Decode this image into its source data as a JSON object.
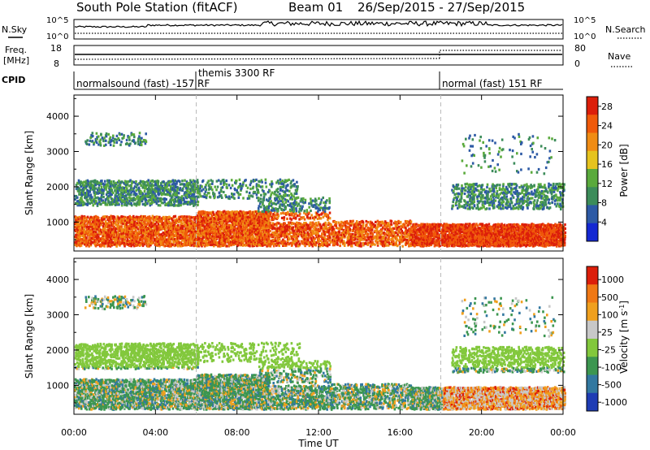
{
  "header": {
    "station": "South Pole Station (fitACF)",
    "beam": "Beam 01",
    "daterange": "26/Sep/2015 - 27/Sep/2015"
  },
  "strips": {
    "nsky_label": "N.Sky",
    "nsky_ticks": [
      "10^5",
      "10^0"
    ],
    "nsearch_label": "N.Search",
    "nsearch_ticks": [
      "10^5",
      "10^0"
    ],
    "freq_label_1": "Freq.",
    "freq_label_2": "[MHz]",
    "freq_ticks": [
      "18",
      "8"
    ],
    "nave_label": "Nave",
    "nave_ticks": [
      "80",
      "0"
    ],
    "cpid_label": "CPID",
    "cpid_segments": [
      {
        "label": "normalsound (fast) -157 RF",
        "start_hour": 0
      },
      {
        "label": "themis 3300 RF",
        "start_hour": 6
      },
      {
        "label": "normal (fast) 151 RF",
        "start_hour": 18
      }
    ]
  },
  "chart_data": [
    {
      "type": "heatmap",
      "title": "",
      "xlabel": "Time UT",
      "ylabel": "Slant Range [km]",
      "x_range_hours": [
        0,
        24
      ],
      "x_ticks": [
        "00:00",
        "04:00",
        "08:00",
        "12:00",
        "16:00",
        "20:00",
        "00:00"
      ],
      "ylim": [
        180,
        4600
      ],
      "y_ticks": [
        1000,
        2000,
        3000,
        4000
      ],
      "colorbar": {
        "label": "Power [dB]",
        "ticks": [
          4,
          8,
          12,
          16,
          20,
          24,
          28
        ],
        "range": [
          0,
          30
        ],
        "colors": [
          "#1428d2",
          "#2d5aa5",
          "#3c8c5a",
          "#5aaa3c",
          "#e6c31e",
          "#f08c14",
          "#f05a0a",
          "#dc1e0a"
        ]
      }
    },
    {
      "type": "heatmap",
      "title": "",
      "xlabel": "Time UT",
      "ylabel": "Slant Range [km]",
      "x_range_hours": [
        0,
        24
      ],
      "x_ticks": [
        "00:00",
        "04:00",
        "08:00",
        "12:00",
        "16:00",
        "20:00",
        "00:00"
      ],
      "ylim": [
        180,
        4600
      ],
      "y_ticks": [
        1000,
        2000,
        3000,
        4000
      ],
      "colorbar": {
        "label": "Velocity [m s^-1]",
        "ticks": [
          "1000",
          "500",
          "100",
          "25",
          "-25",
          "-100",
          "-500",
          "-1000"
        ],
        "colors": [
          "#1e3cb4",
          "#3278a0",
          "#3c9650",
          "#82c83c",
          "#c8c8c8",
          "#f0a01e",
          "#f07814",
          "#dc1e0a"
        ]
      }
    }
  ]
}
